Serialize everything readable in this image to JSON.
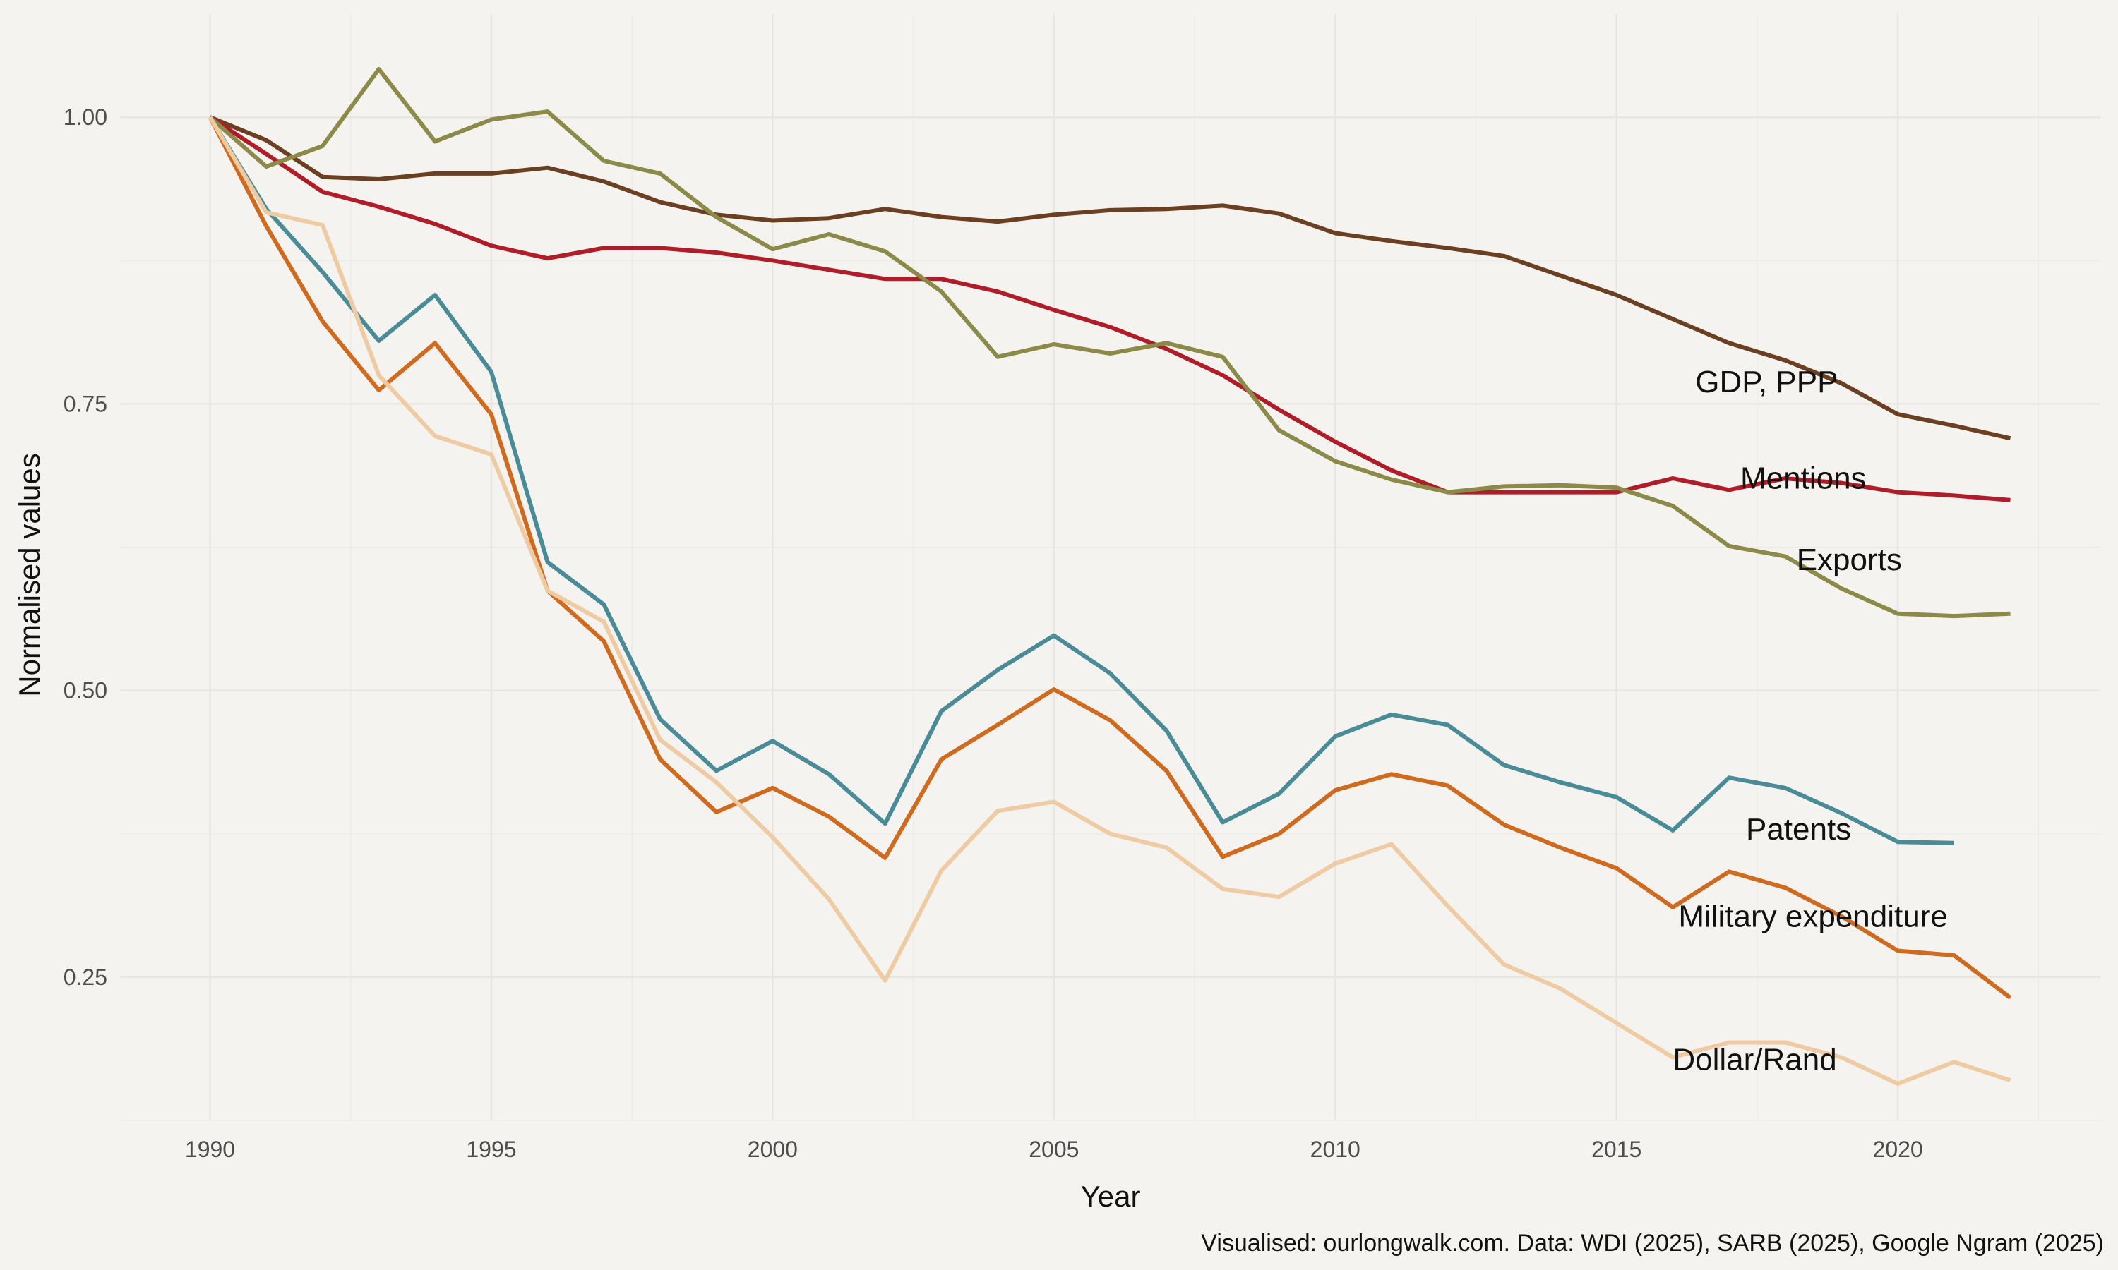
{
  "chart_data": {
    "type": "line",
    "xlabel": "Year",
    "ylabel": "Normalised values",
    "caption": "Visualised: ourlongwalk.com. Data: WDI (2025), SARB (2025), Google Ngram (2025)",
    "xlim": [
      1988.4,
      2023.6
    ],
    "ylim": [
      0.125,
      1.09
    ],
    "x_ticks": [
      1990,
      1995,
      2000,
      2005,
      2010,
      2015,
      2020
    ],
    "x_tick_labels": [
      "1990",
      "1995",
      "2000",
      "2005",
      "2010",
      "2015",
      "2020"
    ],
    "y_ticks": [
      0.25,
      0.5,
      0.75,
      1.0
    ],
    "y_tick_labels": [
      "0.25",
      "0.50",
      "0.75",
      "1.00"
    ],
    "grid": true,
    "legend": "none",
    "series": [
      {
        "name": "GDP, PPP",
        "color": "#6b3f22",
        "x": [
          1990,
          1991,
          1992,
          1993,
          1994,
          1995,
          1996,
          1997,
          1998,
          1999,
          2000,
          2001,
          2002,
          2003,
          2004,
          2005,
          2006,
          2007,
          2008,
          2009,
          2010,
          2011,
          2012,
          2013,
          2014,
          2015,
          2016,
          2017,
          2018,
          2019,
          2020,
          2021,
          2022
        ],
        "values": [
          1.0,
          0.98,
          0.948,
          0.946,
          0.951,
          0.951,
          0.956,
          0.944,
          0.926,
          0.915,
          0.91,
          0.912,
          0.92,
          0.913,
          0.909,
          0.915,
          0.919,
          0.92,
          0.923,
          0.916,
          0.899,
          0.892,
          0.886,
          0.879,
          0.862,
          0.845,
          0.824,
          0.803,
          0.788,
          0.768,
          0.741,
          0.731,
          0.72
        ],
        "label_year": 2016.4,
        "label_value": 0.76
      },
      {
        "name": "Mentions",
        "color": "#b01c28",
        "x": [
          1990,
          1991,
          1992,
          1993,
          1994,
          1995,
          1996,
          1997,
          1998,
          1999,
          2000,
          2001,
          2002,
          2003,
          2004,
          2005,
          2006,
          2007,
          2008,
          2009,
          2010,
          2011,
          2012,
          2013,
          2014,
          2015,
          2016,
          2017,
          2018,
          2019,
          2020,
          2021,
          2022
        ],
        "values": [
          1.0,
          0.968,
          0.935,
          0.922,
          0.907,
          0.888,
          0.877,
          0.886,
          0.886,
          0.882,
          0.875,
          0.867,
          0.859,
          0.859,
          0.848,
          0.832,
          0.817,
          0.798,
          0.775,
          0.745,
          0.717,
          0.692,
          0.673,
          0.673,
          0.673,
          0.673,
          0.685,
          0.675,
          0.685,
          0.681,
          0.673,
          0.67,
          0.666
        ],
        "label_year": 2017.2,
        "label_value": 0.676
      },
      {
        "name": "Exports",
        "color": "#8c8a48",
        "x": [
          1990,
          1991,
          1992,
          1993,
          1994,
          1995,
          1996,
          1997,
          1998,
          1999,
          2000,
          2001,
          2002,
          2003,
          2004,
          2005,
          2006,
          2007,
          2008,
          2009,
          2010,
          2011,
          2012,
          2013,
          2014,
          2015,
          2016,
          2017,
          2018,
          2019,
          2020,
          2021,
          2022
        ],
        "values": [
          1.0,
          0.957,
          0.975,
          1.042,
          0.979,
          0.998,
          1.005,
          0.962,
          0.951,
          0.913,
          0.885,
          0.898,
          0.883,
          0.848,
          0.791,
          0.802,
          0.794,
          0.803,
          0.791,
          0.727,
          0.7,
          0.684,
          0.673,
          0.678,
          0.679,
          0.677,
          0.661,
          0.626,
          0.617,
          0.589,
          0.567,
          0.565,
          0.567
        ],
        "label_year": 2018.2,
        "label_value": 0.605
      },
      {
        "name": "Patents",
        "color": "#4a8b98",
        "x": [
          1990,
          1991,
          1992,
          1993,
          1994,
          1995,
          1996,
          1997,
          1998,
          1999,
          2000,
          2001,
          2002,
          2003,
          2004,
          2005,
          2006,
          2007,
          2008,
          2009,
          2010,
          2011,
          2012,
          2013,
          2014,
          2015,
          2016,
          2017,
          2018,
          2019,
          2020,
          2021
        ],
        "values": [
          1.0,
          0.92,
          0.865,
          0.805,
          0.845,
          0.778,
          0.612,
          0.575,
          0.475,
          0.43,
          0.456,
          0.427,
          0.384,
          0.482,
          0.518,
          0.548,
          0.515,
          0.465,
          0.385,
          0.41,
          0.46,
          0.479,
          0.47,
          0.435,
          0.42,
          0.407,
          0.378,
          0.424,
          0.415,
          0.393,
          0.368,
          0.367
        ],
        "label_year": 2017.3,
        "label_value": 0.37
      },
      {
        "name": "Military expenditure",
        "color": "#d06a1e",
        "x": [
          1990,
          1991,
          1992,
          1993,
          1994,
          1995,
          1996,
          1997,
          1998,
          1999,
          2000,
          2001,
          2002,
          2003,
          2004,
          2005,
          2006,
          2007,
          2008,
          2009,
          2010,
          2011,
          2012,
          2013,
          2014,
          2015,
          2016,
          2017,
          2018,
          2019,
          2020,
          2021,
          2022
        ],
        "values": [
          1.0,
          0.905,
          0.822,
          0.762,
          0.803,
          0.741,
          0.587,
          0.543,
          0.44,
          0.394,
          0.415,
          0.39,
          0.354,
          0.44,
          0.47,
          0.501,
          0.474,
          0.43,
          0.355,
          0.375,
          0.413,
          0.427,
          0.417,
          0.383,
          0.363,
          0.345,
          0.311,
          0.342,
          0.328,
          0.303,
          0.273,
          0.269,
          0.232
        ],
        "label_year": 2016.1,
        "label_value": 0.294
      },
      {
        "name": "Dollar/Rand",
        "color": "#efcba3",
        "x": [
          1990,
          1991,
          1992,
          1993,
          1994,
          1995,
          1996,
          1997,
          1998,
          1999,
          2000,
          2001,
          2002,
          2003,
          2004,
          2005,
          2006,
          2007,
          2008,
          2009,
          2010,
          2011,
          2012,
          2013,
          2014,
          2015,
          2016,
          2017,
          2018,
          2019,
          2020,
          2021,
          2022
        ],
        "values": [
          1.0,
          0.917,
          0.906,
          0.775,
          0.722,
          0.706,
          0.587,
          0.56,
          0.457,
          0.42,
          0.372,
          0.318,
          0.247,
          0.343,
          0.395,
          0.403,
          0.375,
          0.363,
          0.327,
          0.32,
          0.349,
          0.366,
          0.312,
          0.261,
          0.24,
          0.21,
          0.18,
          0.193,
          0.193,
          0.18,
          0.157,
          0.176,
          0.16
        ],
        "label_year": 2016.0,
        "label_value": 0.169
      }
    ]
  }
}
